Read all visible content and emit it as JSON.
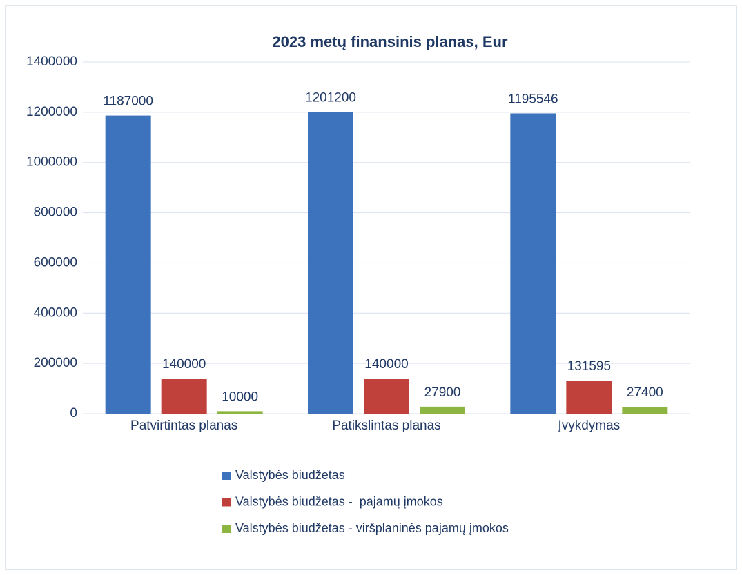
{
  "chart_data": {
    "type": "bar",
    "title": "2023 metų finansinis planas, Eur",
    "categories": [
      "Patvirtintas planas",
      "Patikslintas planas",
      "Įvykdymas"
    ],
    "series": [
      {
        "name": "Valstybės biudžetas",
        "color": "#3d72bd",
        "values": [
          1187000,
          1201200,
          1195546
        ]
      },
      {
        "name": "Valstybės biudžetas -  pajamų įmokos",
        "color": "#c0403c",
        "values": [
          140000,
          140000,
          131595
        ]
      },
      {
        "name": "Valstybės biudžetas - viršplaninės pajamų įmokos",
        "color": "#8db542",
        "values": [
          10000,
          27900,
          27400
        ]
      }
    ],
    "ylim": [
      0,
      1400000
    ],
    "yticks": [
      0,
      200000,
      400000,
      600000,
      800000,
      1000000,
      1200000,
      1400000
    ],
    "grid": true,
    "legend": "bottom"
  }
}
